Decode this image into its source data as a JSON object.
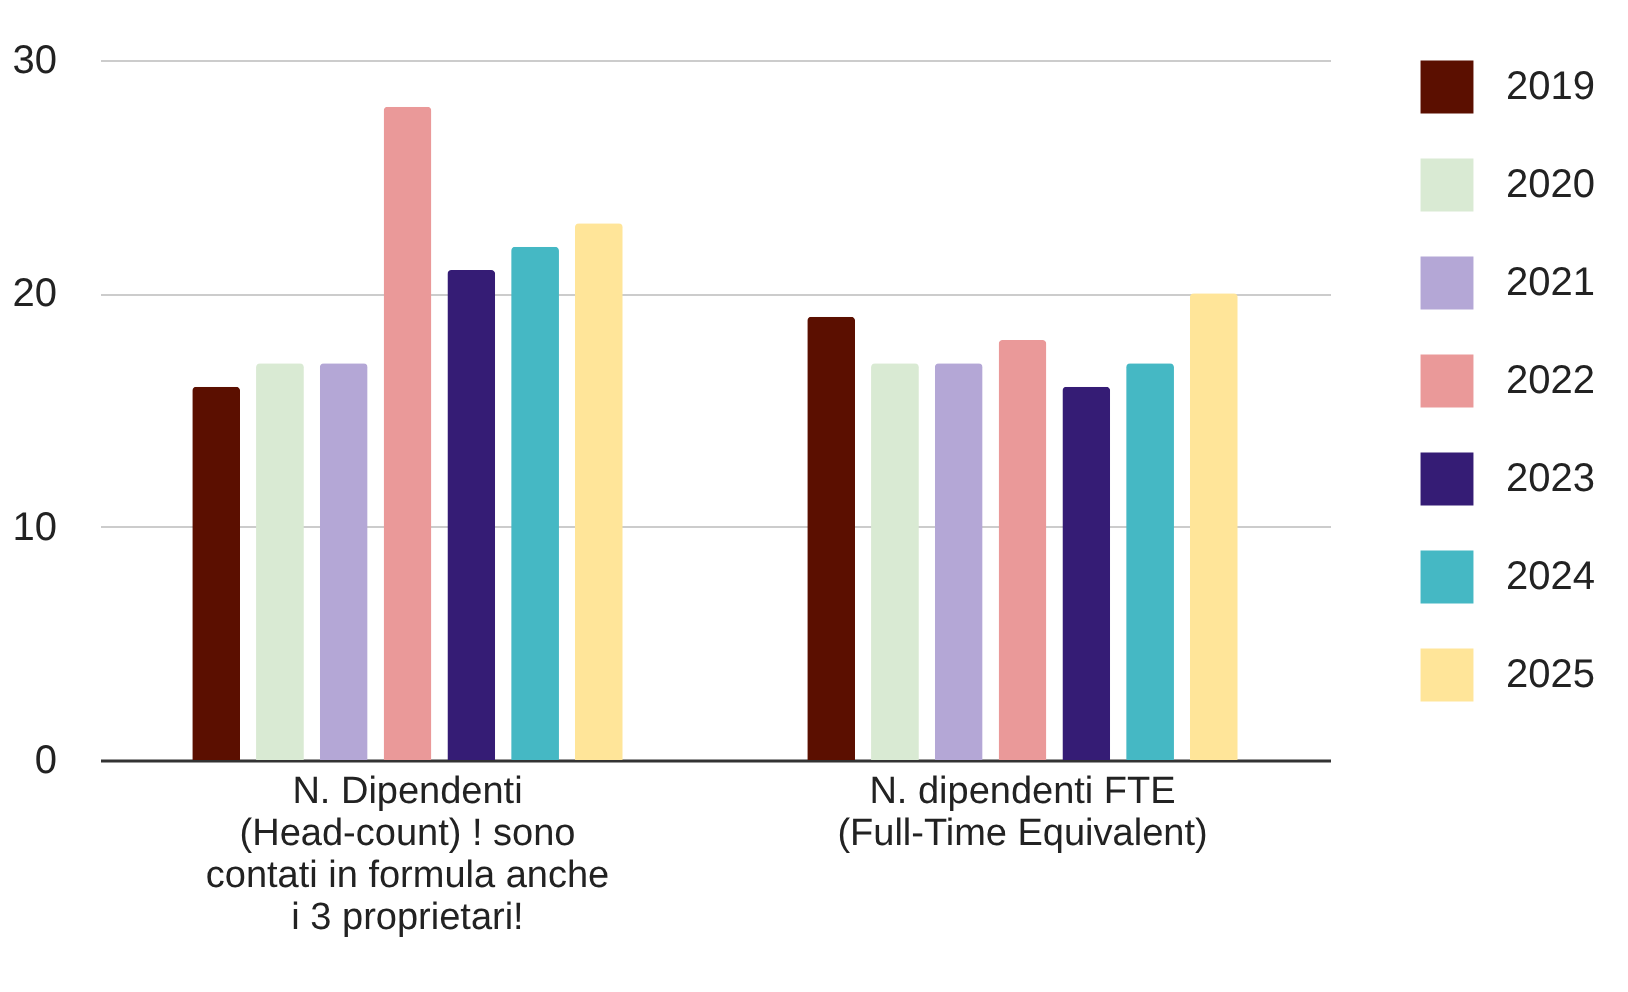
{
  "chart_data": {
    "type": "bar",
    "categories": [
      "N. Dipendenti (Head-count) ! sono contati in formula anche i 3 proprietari!",
      "N. dipendenti FTE (Full-Time Equivalent)"
    ],
    "series": [
      {
        "name": "2019",
        "color": "#5b0f00",
        "values": [
          16,
          19
        ]
      },
      {
        "name": "2020",
        "color": "#d9ead3",
        "values": [
          17,
          17
        ]
      },
      {
        "name": "2021",
        "color": "#b4a7d6",
        "values": [
          17,
          17
        ]
      },
      {
        "name": "2022",
        "color": "#ea9999",
        "values": [
          28,
          18
        ]
      },
      {
        "name": "2023",
        "color": "#351c75",
        "values": [
          21,
          16
        ]
      },
      {
        "name": "2024",
        "color": "#45b8c4",
        "values": [
          22,
          17
        ]
      },
      {
        "name": "2025",
        "color": "#ffe599",
        "values": [
          23,
          20
        ]
      }
    ],
    "ylim": [
      0,
      30
    ],
    "yticks": [
      0,
      10,
      20,
      30
    ],
    "grid": "y",
    "legend": "right"
  }
}
